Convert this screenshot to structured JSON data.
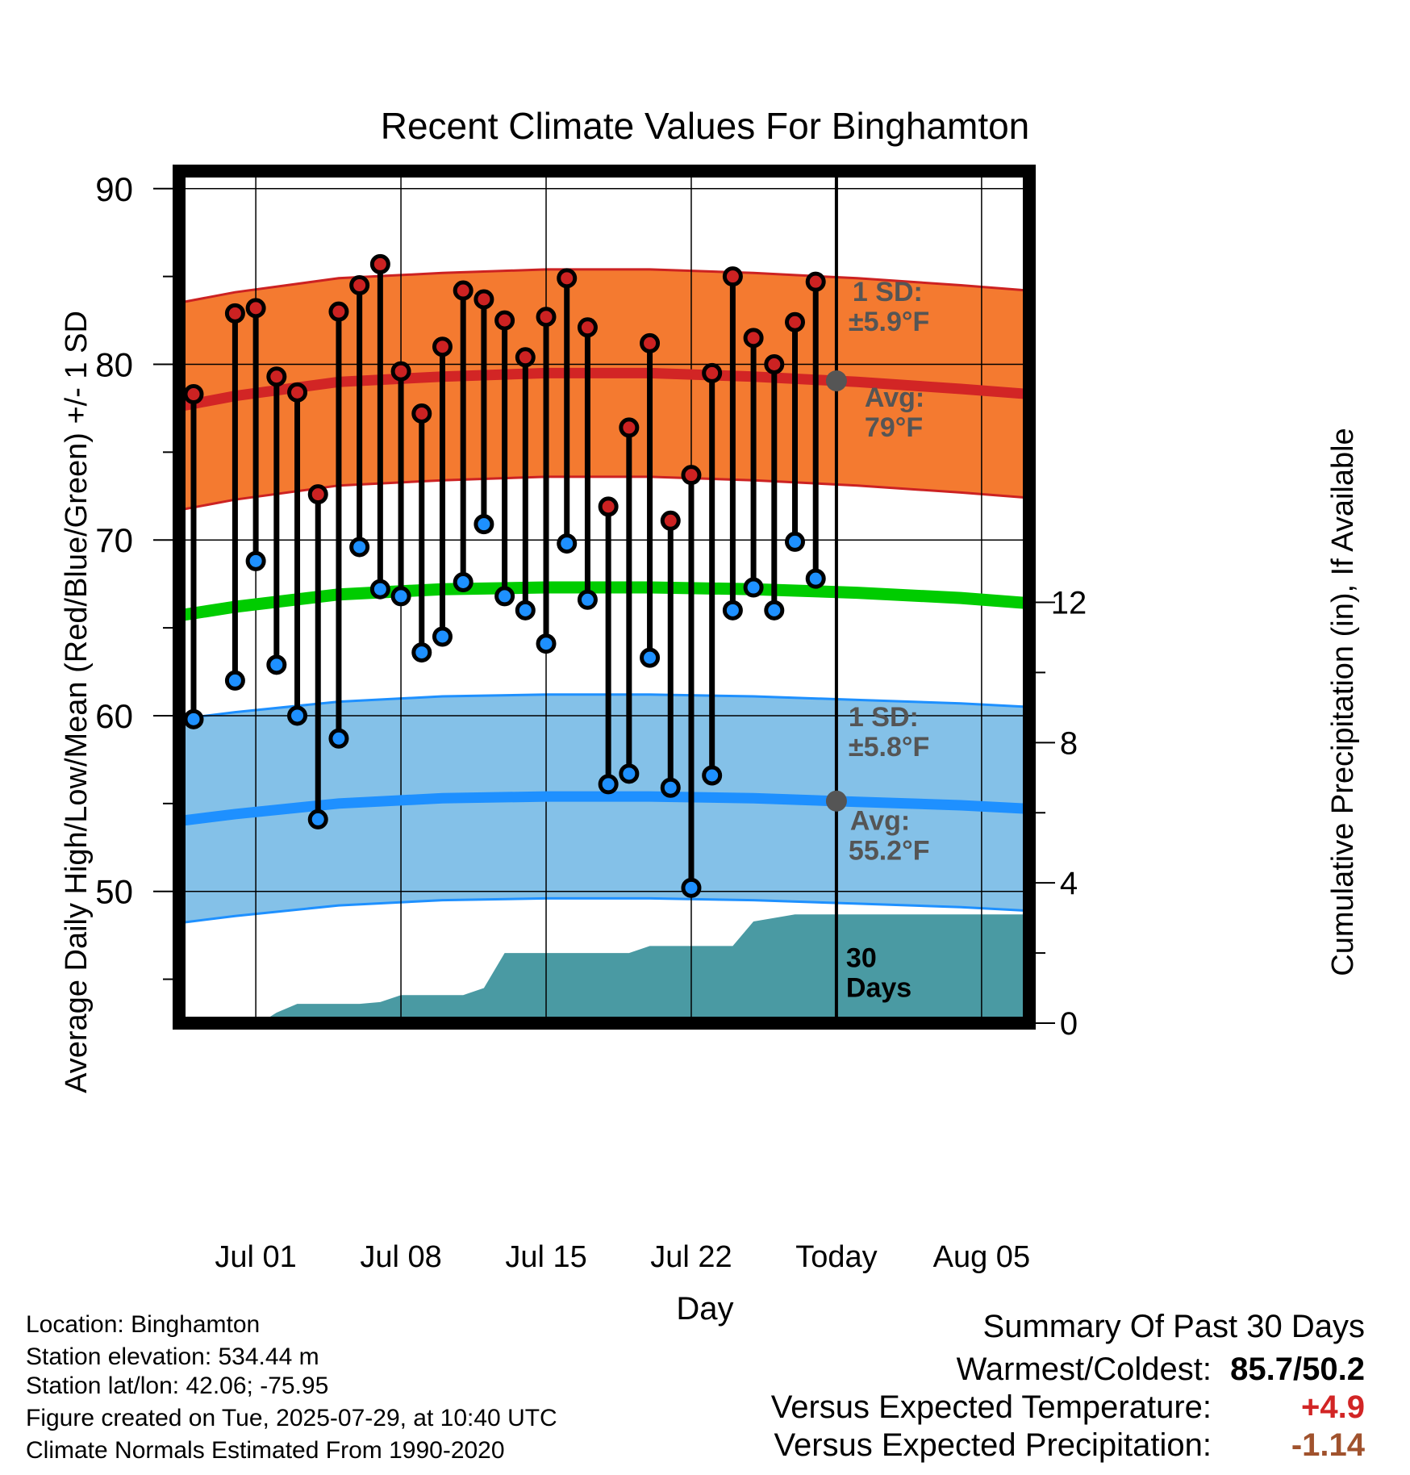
{
  "chart_data": {
    "type": "line",
    "title": "Recent Climate Values For Binghamton",
    "xlabel": "Day",
    "ylabel_left": "Average Daily High/Low/Mean (Red/Blue/Green) +/- 1 SD",
    "ylabel_right": "Cumulative Precipitation (in), If Available",
    "x_tick_labels": [
      "Jul 01",
      "Jul 08",
      "Jul 15",
      "Jul 22",
      "Today",
      "Aug 05"
    ],
    "x_tick_days": [
      1,
      8,
      15,
      22,
      29,
      36
    ],
    "x_range_days": [
      -2.7,
      38.3
    ],
    "y_left_ticks": [
      50,
      60,
      70,
      80,
      90
    ],
    "y_left_range": [
      42.5,
      91.0
    ],
    "y_right_ticks": [
      0,
      4,
      8,
      12
    ],
    "y_right_range": [
      0,
      24.3
    ],
    "grid": true,
    "colors": {
      "high_band": "#f47a30",
      "high_edge": "#cc2222",
      "high_avg": "#d22525",
      "low_band": "#84c1e8",
      "low_edge": "#1e90ff",
      "low_avg": "#1e90ff",
      "mean": "#00cc00",
      "precip": "#4a9aa3",
      "high_dot": "#cc2222",
      "low_dot": "#1e90ff",
      "today_marker": "#555555",
      "annotation": "#555555"
    },
    "normals_days": [
      -2.7,
      0,
      5,
      10,
      15,
      20,
      25,
      30,
      35,
      38.3
    ],
    "normal_high": [
      77.6,
      78.2,
      79.0,
      79.3,
      79.5,
      79.5,
      79.3,
      79.0,
      78.6,
      78.3
    ],
    "normal_low": [
      54.0,
      54.4,
      55.0,
      55.3,
      55.4,
      55.4,
      55.3,
      55.1,
      54.9,
      54.7
    ],
    "normal_mean": [
      65.7,
      66.2,
      66.9,
      67.2,
      67.3,
      67.3,
      67.2,
      67.0,
      66.7,
      66.4
    ],
    "high_sd": 5.9,
    "low_sd": 5.8,
    "observations": [
      {
        "day": -2,
        "high": 78.3,
        "low": 59.8
      },
      {
        "day": 0,
        "high": 82.9,
        "low": 62.0
      },
      {
        "day": 1,
        "high": 83.2,
        "low": 68.8
      },
      {
        "day": 2,
        "high": 79.3,
        "low": 62.9
      },
      {
        "day": 3,
        "high": 78.4,
        "low": 60.0
      },
      {
        "day": 4,
        "high": 72.6,
        "low": 54.1
      },
      {
        "day": 5,
        "high": 83.0,
        "low": 58.7
      },
      {
        "day": 6,
        "high": 84.5,
        "low": 69.6
      },
      {
        "day": 7,
        "high": 85.7,
        "low": 67.2
      },
      {
        "day": 8,
        "high": 79.6,
        "low": 66.8
      },
      {
        "day": 9,
        "high": 77.2,
        "low": 63.6
      },
      {
        "day": 10,
        "high": 81.0,
        "low": 64.5
      },
      {
        "day": 11,
        "high": 84.2,
        "low": 67.6
      },
      {
        "day": 12,
        "high": 83.7,
        "low": 70.9
      },
      {
        "day": 13,
        "high": 82.5,
        "low": 66.8
      },
      {
        "day": 14,
        "high": 80.4,
        "low": 66.0
      },
      {
        "day": 15,
        "high": 82.7,
        "low": 64.1
      },
      {
        "day": 16,
        "high": 84.9,
        "low": 69.8
      },
      {
        "day": 17,
        "high": 82.1,
        "low": 66.6
      },
      {
        "day": 18,
        "high": 71.9,
        "low": 56.1
      },
      {
        "day": 19,
        "high": 76.4,
        "low": 56.7
      },
      {
        "day": 20,
        "high": 81.2,
        "low": 63.3
      },
      {
        "day": 21,
        "high": 71.1,
        "low": 55.9
      },
      {
        "day": 22,
        "high": 73.7,
        "low": 50.2
      },
      {
        "day": 23,
        "high": 79.5,
        "low": 56.6
      },
      {
        "day": 24,
        "high": 85.0,
        "low": 66.0
      },
      {
        "day": 25,
        "high": 81.5,
        "low": 67.3
      },
      {
        "day": 26,
        "high": 80.0,
        "low": 66.0
      },
      {
        "day": 27,
        "high": 82.4,
        "low": 69.9
      },
      {
        "day": 28,
        "high": 84.7,
        "low": 67.8
      }
    ],
    "precip_days": [
      -2.7,
      0,
      1.2,
      2,
      3,
      4,
      5,
      6,
      7,
      8,
      9,
      10,
      11,
      12,
      13,
      14,
      15,
      16,
      17,
      18,
      19,
      20,
      21,
      22,
      23,
      24,
      25,
      26,
      27,
      28,
      38.3
    ],
    "precip_cumulative": [
      0,
      0,
      0,
      0.3,
      0.55,
      0.55,
      0.55,
      0.55,
      0.6,
      0.8,
      0.8,
      0.8,
      0.8,
      1.0,
      2.0,
      2.0,
      2.0,
      2.0,
      2.0,
      2.0,
      2.0,
      2.2,
      2.2,
      2.2,
      2.2,
      2.2,
      2.9,
      3.0,
      3.1,
      3.1,
      3.1
    ],
    "today_day": 29,
    "annotations": {
      "high_sd_line1": "1 SD:",
      "high_sd_line2": "±5.9°F",
      "high_avg_line1": "Avg:",
      "high_avg_line2": "79°F",
      "low_sd_line1": "1 SD:",
      "low_sd_line2": "±5.8°F",
      "low_avg_line1": "Avg:",
      "low_avg_line2": "55.2°F",
      "days_line1": "30",
      "days_line2": "Days"
    }
  },
  "info": {
    "location": "Location: Binghamton",
    "elevation": "Station elevation: 534.44 m",
    "latlon": "Station lat/lon: 42.06; -75.95",
    "created": "Figure created on Tue, 2025-07-29, at 10:40 UTC",
    "normals": "Climate Normals Estimated From 1990-2020"
  },
  "summary": {
    "title": "Summary Of Past 30 Days",
    "warmest_label": "Warmest/Coldest:",
    "warmest_value": "85.7/50.2",
    "temp_label": "Versus Expected Temperature:",
    "temp_value": "+4.9",
    "temp_color": "#d22525",
    "precip_label": "Versus Expected Precipitation:",
    "precip_value": "-1.14",
    "precip_color": "#a0522d"
  }
}
